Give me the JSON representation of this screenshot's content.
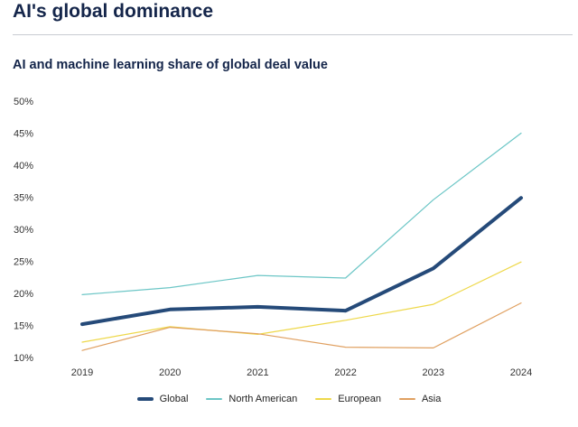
{
  "page_title": "AI's global dominance",
  "chart_data": {
    "type": "line",
    "title": "AI and machine learning share of global deal value",
    "xlabel": "",
    "ylabel": "",
    "x": [
      "2019",
      "2020",
      "2021",
      "2022",
      "2023",
      "2024"
    ],
    "ylim": [
      10,
      50
    ],
    "yticks": [
      10,
      15,
      20,
      25,
      30,
      35,
      40,
      45,
      50
    ],
    "ytick_labels": [
      "10%",
      "15%",
      "20%",
      "25%",
      "30%",
      "35%",
      "40%",
      "45%",
      "50%"
    ],
    "grid": false,
    "legend_position": "bottom-center",
    "series": [
      {
        "name": "North American",
        "color": "#6cc6c6",
        "emphasis": "thin",
        "values": [
          19.8,
          20.9,
          22.8,
          22.4,
          34.6,
          45.0
        ]
      },
      {
        "name": "European",
        "color": "#eed84a",
        "emphasis": "thin",
        "values": [
          12.4,
          14.8,
          13.6,
          15.8,
          18.3,
          24.9
        ]
      },
      {
        "name": "Asia",
        "color": "#e0a060",
        "emphasis": "thin",
        "values": [
          11.1,
          14.7,
          13.7,
          11.6,
          11.5,
          18.5
        ]
      },
      {
        "name": "Global",
        "color": "#254a79",
        "emphasis": "bold",
        "values": [
          15.2,
          17.5,
          17.9,
          17.3,
          23.9,
          34.9
        ]
      }
    ],
    "legend_order": [
      "Global",
      "North American",
      "European",
      "Asia"
    ]
  }
}
